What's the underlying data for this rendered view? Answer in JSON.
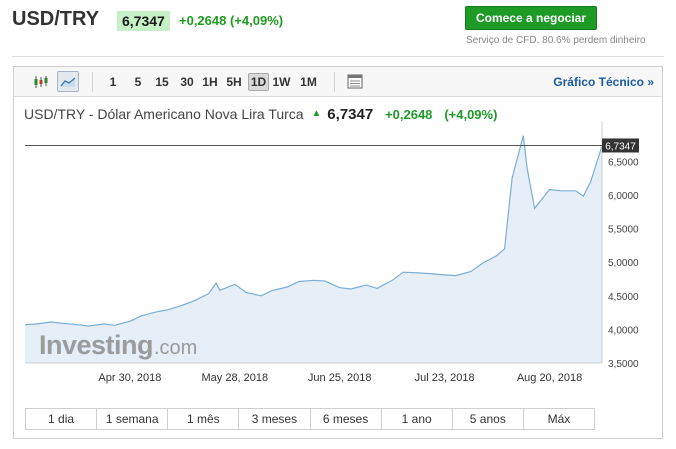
{
  "header": {
    "symbol": "USD/TRY",
    "price": "6,7347",
    "change": "+0,2648 (+4,09%)",
    "cta_label": "Comece a negociar",
    "cfd_note": "Serviço de CFD. 80.6% perdem dinheiro"
  },
  "toolbar": {
    "icons": [
      "candlestick-icon",
      "area-chart-icon",
      "table-icon"
    ],
    "timeframes": [
      {
        "label": "1",
        "active": false
      },
      {
        "label": "5",
        "active": false
      },
      {
        "label": "15",
        "active": false
      },
      {
        "label": "30",
        "active": false
      },
      {
        "label": "1H",
        "active": false
      },
      {
        "label": "5H",
        "active": false
      },
      {
        "label": "1D",
        "active": true
      },
      {
        "label": "1W",
        "active": false
      },
      {
        "label": "1M",
        "active": false
      }
    ],
    "tech_link": "Gráfico Técnico »"
  },
  "chart_header": {
    "name": "USD/TRY - Dólar Americano Nova Lira Turca",
    "price": "6,7347",
    "change": "+0,2648",
    "change_pct": "(+4,09%)"
  },
  "watermark": {
    "brand": "Investing",
    "suffix": ".com"
  },
  "range_buttons": [
    "1 dia",
    "1 semana",
    "1 mês",
    "3 meses",
    "6 meses",
    "1 ano",
    "5 anos",
    "Máx"
  ],
  "colors": {
    "line": "#7aaed6",
    "fill": "#e6eef7",
    "up": "#1e9a26",
    "last_price_line": "#555555",
    "price_badge": "#333333"
  },
  "chart_data": {
    "type": "area",
    "title": "USD/TRY - Dólar Americano Nova Lira Turca",
    "xlabel": "",
    "ylabel": "",
    "x_ticks": [
      "Apr 30, 2018",
      "May 28, 2018",
      "Jun 25, 2018",
      "Jul 23, 2018",
      "Aug 20, 2018"
    ],
    "y_ticks": [
      "6,5000",
      "6,0000",
      "5,5000",
      "5,0000",
      "4,5000",
      "4,0000",
      "3,5000"
    ],
    "ylim": [
      3.5,
      6.95
    ],
    "last_price": 6.7347,
    "last_price_label": "6,7347",
    "grid": false,
    "series": [
      {
        "values": [
          [
            "2018-04-02",
            4.07
          ],
          [
            "2018-04-05",
            4.08
          ],
          [
            "2018-04-09",
            4.11
          ],
          [
            "2018-04-12",
            4.09
          ],
          [
            "2018-04-16",
            4.07
          ],
          [
            "2018-04-19",
            4.05
          ],
          [
            "2018-04-23",
            4.08
          ],
          [
            "2018-04-26",
            4.06
          ],
          [
            "2018-04-30",
            4.12
          ],
          [
            "2018-05-03",
            4.2
          ],
          [
            "2018-05-07",
            4.26
          ],
          [
            "2018-05-10",
            4.29
          ],
          [
            "2018-05-14",
            4.36
          ],
          [
            "2018-05-17",
            4.42
          ],
          [
            "2018-05-21",
            4.53
          ],
          [
            "2018-05-23",
            4.69
          ],
          [
            "2018-05-24",
            4.58
          ],
          [
            "2018-05-28",
            4.67
          ],
          [
            "2018-05-31",
            4.55
          ],
          [
            "2018-06-04",
            4.5
          ],
          [
            "2018-06-07",
            4.58
          ],
          [
            "2018-06-11",
            4.63
          ],
          [
            "2018-06-14",
            4.71
          ],
          [
            "2018-06-18",
            4.73
          ],
          [
            "2018-06-21",
            4.72
          ],
          [
            "2018-06-25",
            4.62
          ],
          [
            "2018-06-28",
            4.6
          ],
          [
            "2018-07-02",
            4.66
          ],
          [
            "2018-07-05",
            4.61
          ],
          [
            "2018-07-09",
            4.73
          ],
          [
            "2018-07-12",
            4.85
          ],
          [
            "2018-07-16",
            4.84
          ],
          [
            "2018-07-19",
            4.83
          ],
          [
            "2018-07-23",
            4.81
          ],
          [
            "2018-07-26",
            4.8
          ],
          [
            "2018-07-30",
            4.86
          ],
          [
            "2018-08-02",
            4.98
          ],
          [
            "2018-08-06",
            5.1
          ],
          [
            "2018-08-08",
            5.2
          ],
          [
            "2018-08-10",
            6.25
          ],
          [
            "2018-08-13",
            6.88
          ],
          [
            "2018-08-14",
            6.4
          ],
          [
            "2018-08-15",
            6.1
          ],
          [
            "2018-08-16",
            5.8
          ],
          [
            "2018-08-20",
            6.08
          ],
          [
            "2018-08-23",
            6.06
          ],
          [
            "2018-08-27",
            6.06
          ],
          [
            "2018-08-29",
            5.98
          ],
          [
            "2018-08-31",
            6.2
          ],
          [
            "2018-09-03",
            6.73
          ]
        ]
      }
    ]
  }
}
